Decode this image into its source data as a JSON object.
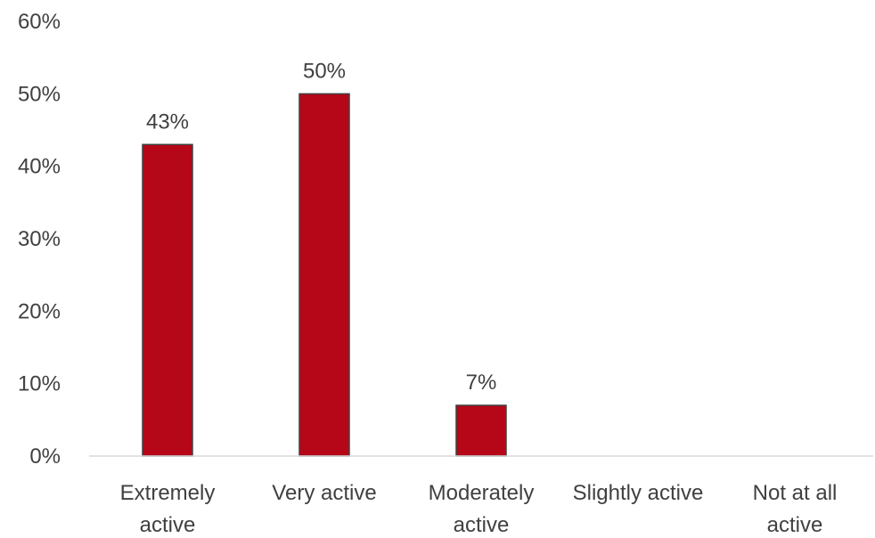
{
  "chart_data": {
    "type": "bar",
    "categories": [
      [
        "Extremely",
        "active"
      ],
      [
        "Very active"
      ],
      [
        "Moderately",
        "active"
      ],
      [
        "Slightly active"
      ],
      [
        "Not at all",
        "active"
      ]
    ],
    "values": [
      43,
      50,
      7,
      null,
      null
    ],
    "data_labels": [
      "43%",
      "50%",
      "7%",
      "",
      ""
    ],
    "y_ticks": [
      "0%",
      "10%",
      "20%",
      "30%",
      "40%",
      "50%",
      "60%"
    ],
    "ylim": [
      0,
      60
    ],
    "bar_color": "#b50717",
    "grid": false,
    "legend": "none"
  }
}
